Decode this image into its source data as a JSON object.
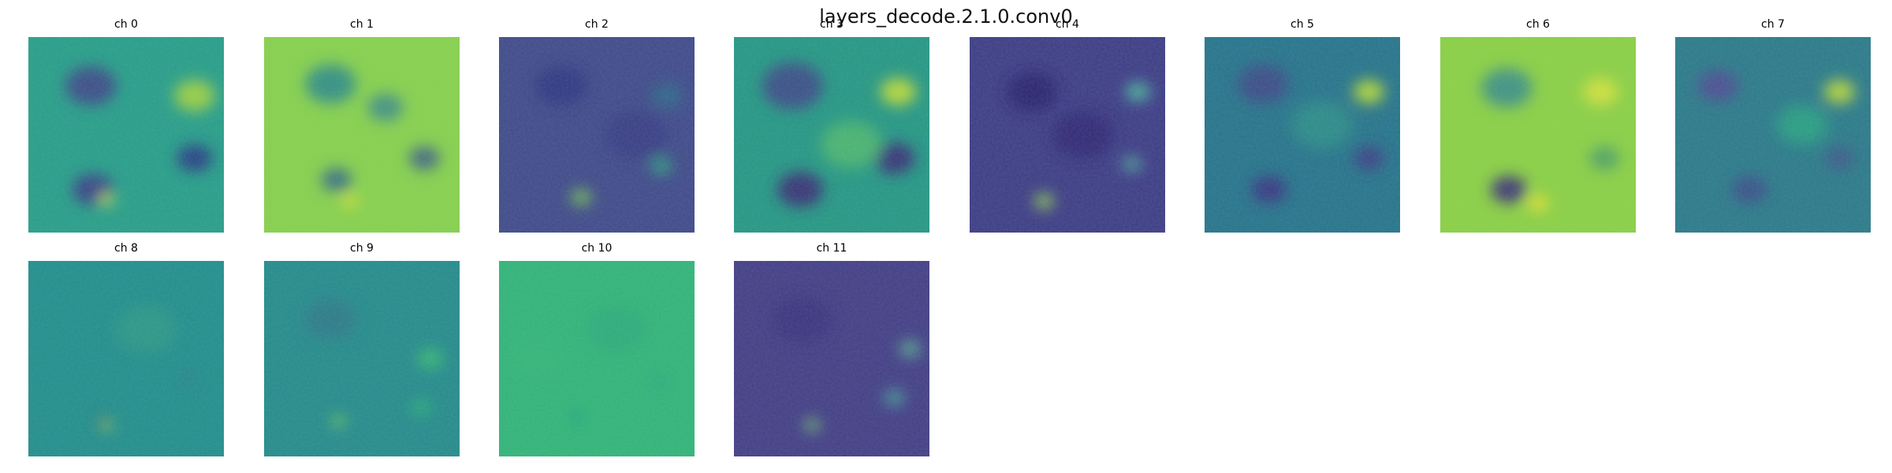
{
  "figure": {
    "title": "layers_decode.2.1.0.conv0",
    "channels": [
      {
        "label": "ch 0",
        "background": "#279f8a",
        "spots": [
          [
            "#3f4889",
            0.32,
            0.25,
            0.1
          ],
          [
            "#a4d440",
            0.85,
            0.3,
            0.08
          ],
          [
            "#3a3f87",
            0.33,
            0.78,
            0.08
          ],
          [
            "#2a3c86",
            0.85,
            0.62,
            0.07
          ],
          [
            "#cfe13c",
            0.4,
            0.83,
            0.03
          ]
        ]
      },
      {
        "label": "ch 1",
        "background": "#86d24d",
        "spots": [
          [
            "#2f8c8a",
            0.34,
            0.24,
            0.1
          ],
          [
            "#3d8d8a",
            0.62,
            0.36,
            0.07
          ],
          [
            "#356a8a",
            0.37,
            0.73,
            0.06
          ],
          [
            "#3f5f8a",
            0.82,
            0.62,
            0.06
          ],
          [
            "#e6e42b",
            0.44,
            0.84,
            0.03
          ]
        ]
      },
      {
        "label": "ch 2",
        "background": "#404b8b",
        "spots": [
          [
            "#2e3784",
            0.32,
            0.25,
            0.1
          ],
          [
            "#2c6d8c",
            0.86,
            0.3,
            0.06
          ],
          [
            "#79cb53",
            0.42,
            0.82,
            0.04
          ],
          [
            "#2eae80",
            0.83,
            0.66,
            0.04
          ],
          [
            "#373e86",
            0.7,
            0.5,
            0.12
          ]
        ]
      },
      {
        "label": "ch 3",
        "background": "#259885",
        "spots": [
          [
            "#3d4a89",
            0.3,
            0.25,
            0.12
          ],
          [
            "#c3df37",
            0.84,
            0.28,
            0.07
          ],
          [
            "#3a2e77",
            0.34,
            0.78,
            0.09
          ],
          [
            "#3c2f79",
            0.82,
            0.62,
            0.08
          ],
          [
            "#4eb870",
            0.6,
            0.55,
            0.12
          ]
        ]
      },
      {
        "label": "ch 4",
        "background": "#3d3d87",
        "spots": [
          [
            "#2a2370",
            0.32,
            0.28,
            0.1
          ],
          [
            "#50b8a0",
            0.86,
            0.28,
            0.05
          ],
          [
            "#8fcd57",
            0.38,
            0.84,
            0.04
          ],
          [
            "#52a39a",
            0.83,
            0.65,
            0.04
          ],
          [
            "#302a77",
            0.58,
            0.5,
            0.12
          ]
        ]
      },
      {
        "label": "ch 5",
        "background": "#26758c",
        "spots": [
          [
            "#3f4b88",
            0.3,
            0.24,
            0.1
          ],
          [
            "#bfe035",
            0.84,
            0.28,
            0.06
          ],
          [
            "#3a3585",
            0.33,
            0.78,
            0.07
          ],
          [
            "#3f3d87",
            0.84,
            0.62,
            0.06
          ],
          [
            "#2f8f89",
            0.6,
            0.45,
            0.12
          ]
        ]
      },
      {
        "label": "ch 6",
        "background": "#8ad145",
        "spots": [
          [
            "#3c8f8b",
            0.34,
            0.26,
            0.1
          ],
          [
            "#d5e33f",
            0.82,
            0.28,
            0.07
          ],
          [
            "#3c2f7b",
            0.35,
            0.78,
            0.07
          ],
          [
            "#4da06a",
            0.84,
            0.62,
            0.06
          ],
          [
            "#f1e42c",
            0.5,
            0.85,
            0.04
          ]
        ]
      },
      {
        "label": "ch 7",
        "background": "#2b7b8b",
        "spots": [
          [
            "#4f4c93",
            0.22,
            0.25,
            0.08
          ],
          [
            "#c1df39",
            0.84,
            0.28,
            0.06
          ],
          [
            "#3a4f8b",
            0.38,
            0.78,
            0.07
          ],
          [
            "#3f5b89",
            0.84,
            0.62,
            0.06
          ],
          [
            "#27a384",
            0.65,
            0.45,
            0.1
          ]
        ]
      },
      {
        "label": "ch 8",
        "background": "#228f8d",
        "spots": [
          [
            "#2f9987",
            0.6,
            0.35,
            0.12
          ],
          [
            "#0f2f55",
            0.38,
            0.82,
            0.02
          ],
          [
            "#d4e046",
            0.4,
            0.84,
            0.02
          ],
          [
            "#2b7f8b",
            0.82,
            0.6,
            0.03
          ]
        ]
      },
      {
        "label": "ch 9",
        "background": "#258c8c",
        "spots": [
          [
            "#2c7a8b",
            0.34,
            0.3,
            0.1
          ],
          [
            "#3bbd75",
            0.85,
            0.5,
            0.05
          ],
          [
            "#69c963",
            0.38,
            0.82,
            0.03
          ],
          [
            "#2fb07a",
            0.8,
            0.75,
            0.04
          ]
        ]
      },
      {
        "label": "ch 10",
        "background": "#31b579",
        "spots": [
          [
            "#2bad7b",
            0.6,
            0.35,
            0.12
          ],
          [
            "#1f8f8c",
            0.4,
            0.8,
            0.02
          ],
          [
            "#2aa682",
            0.82,
            0.62,
            0.03
          ],
          [
            "#35b77a",
            0.2,
            0.5,
            0.1
          ]
        ]
      },
      {
        "label": "ch 11",
        "background": "#433f87",
        "spots": [
          [
            "#3b3381",
            0.35,
            0.3,
            0.12
          ],
          [
            "#5bb892",
            0.9,
            0.45,
            0.04
          ],
          [
            "#7ad26b",
            0.4,
            0.84,
            0.03
          ],
          [
            "#49a59a",
            0.82,
            0.7,
            0.04
          ]
        ]
      }
    ]
  }
}
